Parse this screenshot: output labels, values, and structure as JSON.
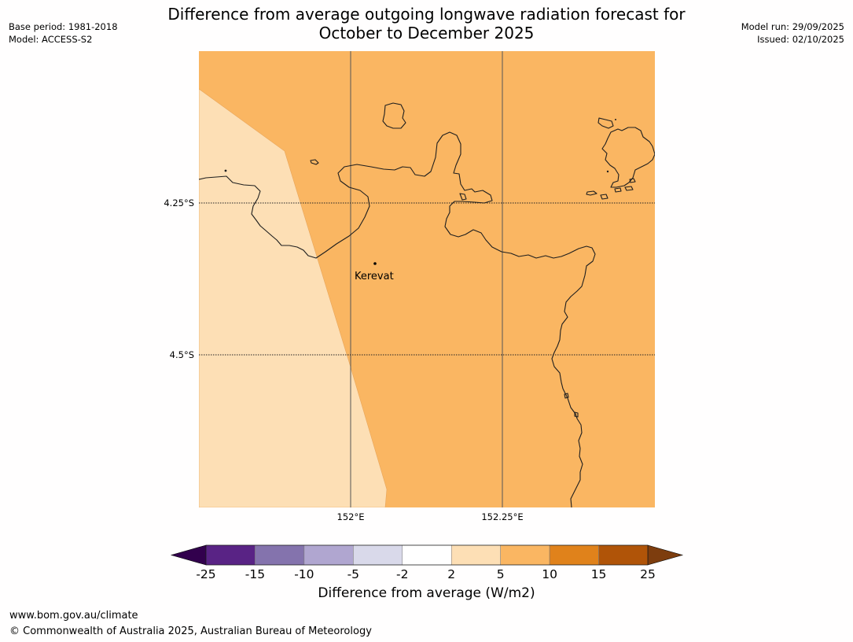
{
  "title": {
    "line1": "Difference from average outgoing longwave radiation forecast for",
    "line2": "October to December 2025"
  },
  "meta_left": {
    "base_period": "Base period: 1981-2018",
    "model": "Model: ACCESS-S2"
  },
  "meta_right": {
    "model_run": "Model run: 29/09/2025",
    "issued": "Issued: 02/10/2025"
  },
  "map": {
    "lat_labels": [
      "4.25°S",
      "4.5°S"
    ],
    "lon_labels": [
      "152°E",
      "152.25°E"
    ],
    "place": "Kerevat",
    "colors": {
      "bin_5_10": "#fab662",
      "bin_2_5": "#fddfb5",
      "coast": "#1e1e1e"
    }
  },
  "colorbar": {
    "ticks": [
      "-25",
      "-15",
      "-10",
      "-5",
      "-2",
      "2",
      "5",
      "10",
      "15",
      "25"
    ],
    "colors": [
      "#592385",
      "#8473ad",
      "#b0a6d0",
      "#d9d9ea",
      "#ffffff",
      "#fddfb5",
      "#fab662",
      "#e0821b",
      "#b05408"
    ],
    "under_color": "#32004d",
    "over_color": "#7d3d0e",
    "label": "Difference from average (W/m2)"
  },
  "footer": {
    "url": "www.bom.gov.au/climate",
    "copyright": "© Commonwealth of Australia 2025, Australian Bureau of Meteorology"
  }
}
